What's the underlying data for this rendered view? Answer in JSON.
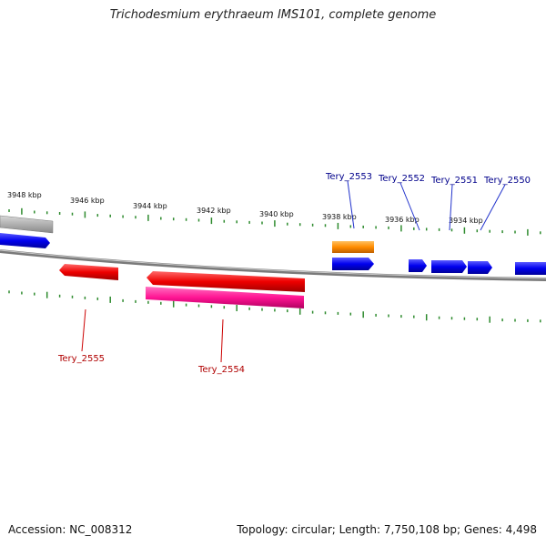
{
  "title": "Trichodesmium erythraeum IMS101, complete genome",
  "footer": {
    "accession": "Accession: NC_008312",
    "summary": "Topology: circular; Length: 7,750,108 bp; Genes: 4,498"
  },
  "colors": {
    "backbone": "#8a8a8a",
    "tick": "#2e8b2e",
    "forward_gene": "#0000ee",
    "reverse_gene": "#ee0000",
    "rrna_like": "#ff8c00",
    "pink_gene": "#ff1493",
    "grey_gene": "#a9a9a9",
    "label_blue": "#00008b",
    "label_red": "#b00000"
  },
  "scale_labels": [
    "3948 kbp",
    "3946 kbp",
    "3944 kbp",
    "3942 kbp",
    "3940 kbp",
    "3938 kbp",
    "3936 kbp",
    "3934 kbp"
  ],
  "gene_labels_top": [
    "Tery_2553",
    "Tery_2552",
    "Tery_2551",
    "Tery_2550"
  ],
  "gene_labels_bottom": [
    "Tery_2555",
    "Tery_2554"
  ]
}
